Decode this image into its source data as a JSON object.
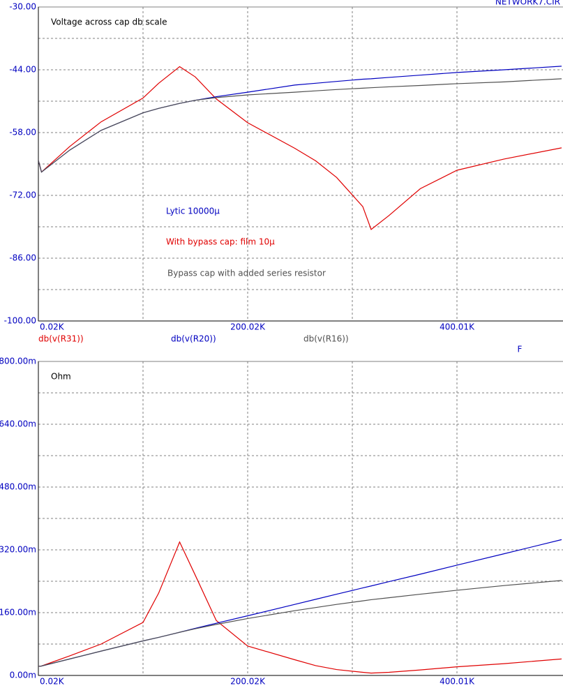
{
  "header": {
    "file": "NETWORK7.CIR"
  },
  "chart_data": [
    {
      "type": "line",
      "title": "Voltage across cap db scale",
      "xlabel": "F",
      "x": [
        20,
        3000,
        30000,
        60000,
        100000,
        115000,
        135000,
        150000,
        170000,
        200000,
        245000,
        265000,
        285000,
        310000,
        318000,
        335000,
        365000,
        400000,
        445000,
        500000
      ],
      "xlim": [
        20,
        500000
      ],
      "xticks": [
        {
          "value": 20,
          "label": "0.02K"
        },
        {
          "value": 200020,
          "label": "200.02K"
        },
        {
          "value": 400010,
          "label": "400.01K"
        }
      ],
      "ylim": [
        -100,
        -30
      ],
      "yticks": [
        {
          "value": -100,
          "label": "-100.00"
        },
        {
          "value": -86,
          "label": "-86.00"
        },
        {
          "value": -72,
          "label": "-72.00"
        },
        {
          "value": -58,
          "label": "-58.00"
        },
        {
          "value": -44,
          "label": "-44.00"
        },
        {
          "value": -30,
          "label": "-30.00"
        }
      ],
      "grid": true,
      "series": [
        {
          "name": "db(v(R31))",
          "color": "#e00000",
          "values": [
            -64.2,
            -66.8,
            -61.1,
            -55.6,
            -50.3,
            -47.0,
            -43.3,
            -45.6,
            -50.5,
            -55.8,
            -61.5,
            -64.3,
            -68.0,
            -74.5,
            -79.6,
            -76.5,
            -70.5,
            -66.4,
            -63.9,
            -61.4
          ]
        },
        {
          "name": "db(v(R20))",
          "color": "#0000c0",
          "values": [
            -64.2,
            -66.8,
            -61.9,
            -57.5,
            -53.6,
            -52.6,
            -51.5,
            -50.8,
            -50.0,
            -49.0,
            -47.4,
            -47.0,
            -46.6,
            -46.1,
            -46.0,
            -45.7,
            -45.2,
            -44.6,
            -44.0,
            -43.2
          ]
        },
        {
          "name": "db(v(R16))",
          "color": "#505050",
          "values": [
            -64.2,
            -66.8,
            -61.9,
            -57.5,
            -53.6,
            -52.6,
            -51.5,
            -50.8,
            -50.2,
            -49.6,
            -49.0,
            -48.7,
            -48.4,
            -48.1,
            -48.0,
            -47.8,
            -47.5,
            -47.1,
            -46.7,
            -46.0
          ]
        }
      ],
      "annotations": [
        {
          "text": "Lytic 10000µ",
          "color": "#0000c0"
        },
        {
          "text": "With bypass cap: film 10µ",
          "color": "#e00000"
        },
        {
          "text": "Bypass cap with added series resistor",
          "color": "#505050"
        }
      ]
    },
    {
      "type": "line",
      "title": "Ohm",
      "x": [
        20,
        3000,
        30000,
        60000,
        100000,
        115000,
        135000,
        150000,
        170000,
        200000,
        245000,
        265000,
        285000,
        310000,
        318000,
        335000,
        365000,
        400000,
        445000,
        500000
      ],
      "xlim": [
        20,
        500000
      ],
      "xticks": [
        {
          "value": 20,
          "label": "0.02K"
        },
        {
          "value": 200020,
          "label": "200.02K"
        },
        {
          "value": 400010,
          "label": "400.01K"
        }
      ],
      "ylim": [
        0,
        800
      ],
      "yticks": [
        {
          "value": 0,
          "label": "0.00m"
        },
        {
          "value": 160,
          "label": "160.00m"
        },
        {
          "value": 320,
          "label": "320.00m"
        },
        {
          "value": 480,
          "label": "480.00m"
        },
        {
          "value": 640,
          "label": "640.00m"
        },
        {
          "value": 800,
          "label": "800.00m"
        }
      ],
      "grid": true,
      "series": [
        {
          "color": "#e00000",
          "values": [
            23,
            24,
            50,
            80,
            135,
            210,
            340,
            255,
            140,
            75,
            40,
            25,
            15,
            8,
            6,
            8,
            14,
            22,
            30,
            42
          ]
        },
        {
          "color": "#0000c0",
          "values": [
            23,
            24,
            42,
            62,
            88,
            97,
            110,
            120,
            133,
            152,
            181,
            194,
            207,
            223,
            228,
            239,
            258,
            281,
            310,
            346
          ]
        },
        {
          "color": "#505050",
          "values": [
            23,
            24,
            42,
            62,
            88,
            97,
            110,
            119,
            130,
            145,
            165,
            173,
            181,
            190,
            193,
            198,
            207,
            217,
            229,
            242
          ]
        }
      ]
    }
  ]
}
